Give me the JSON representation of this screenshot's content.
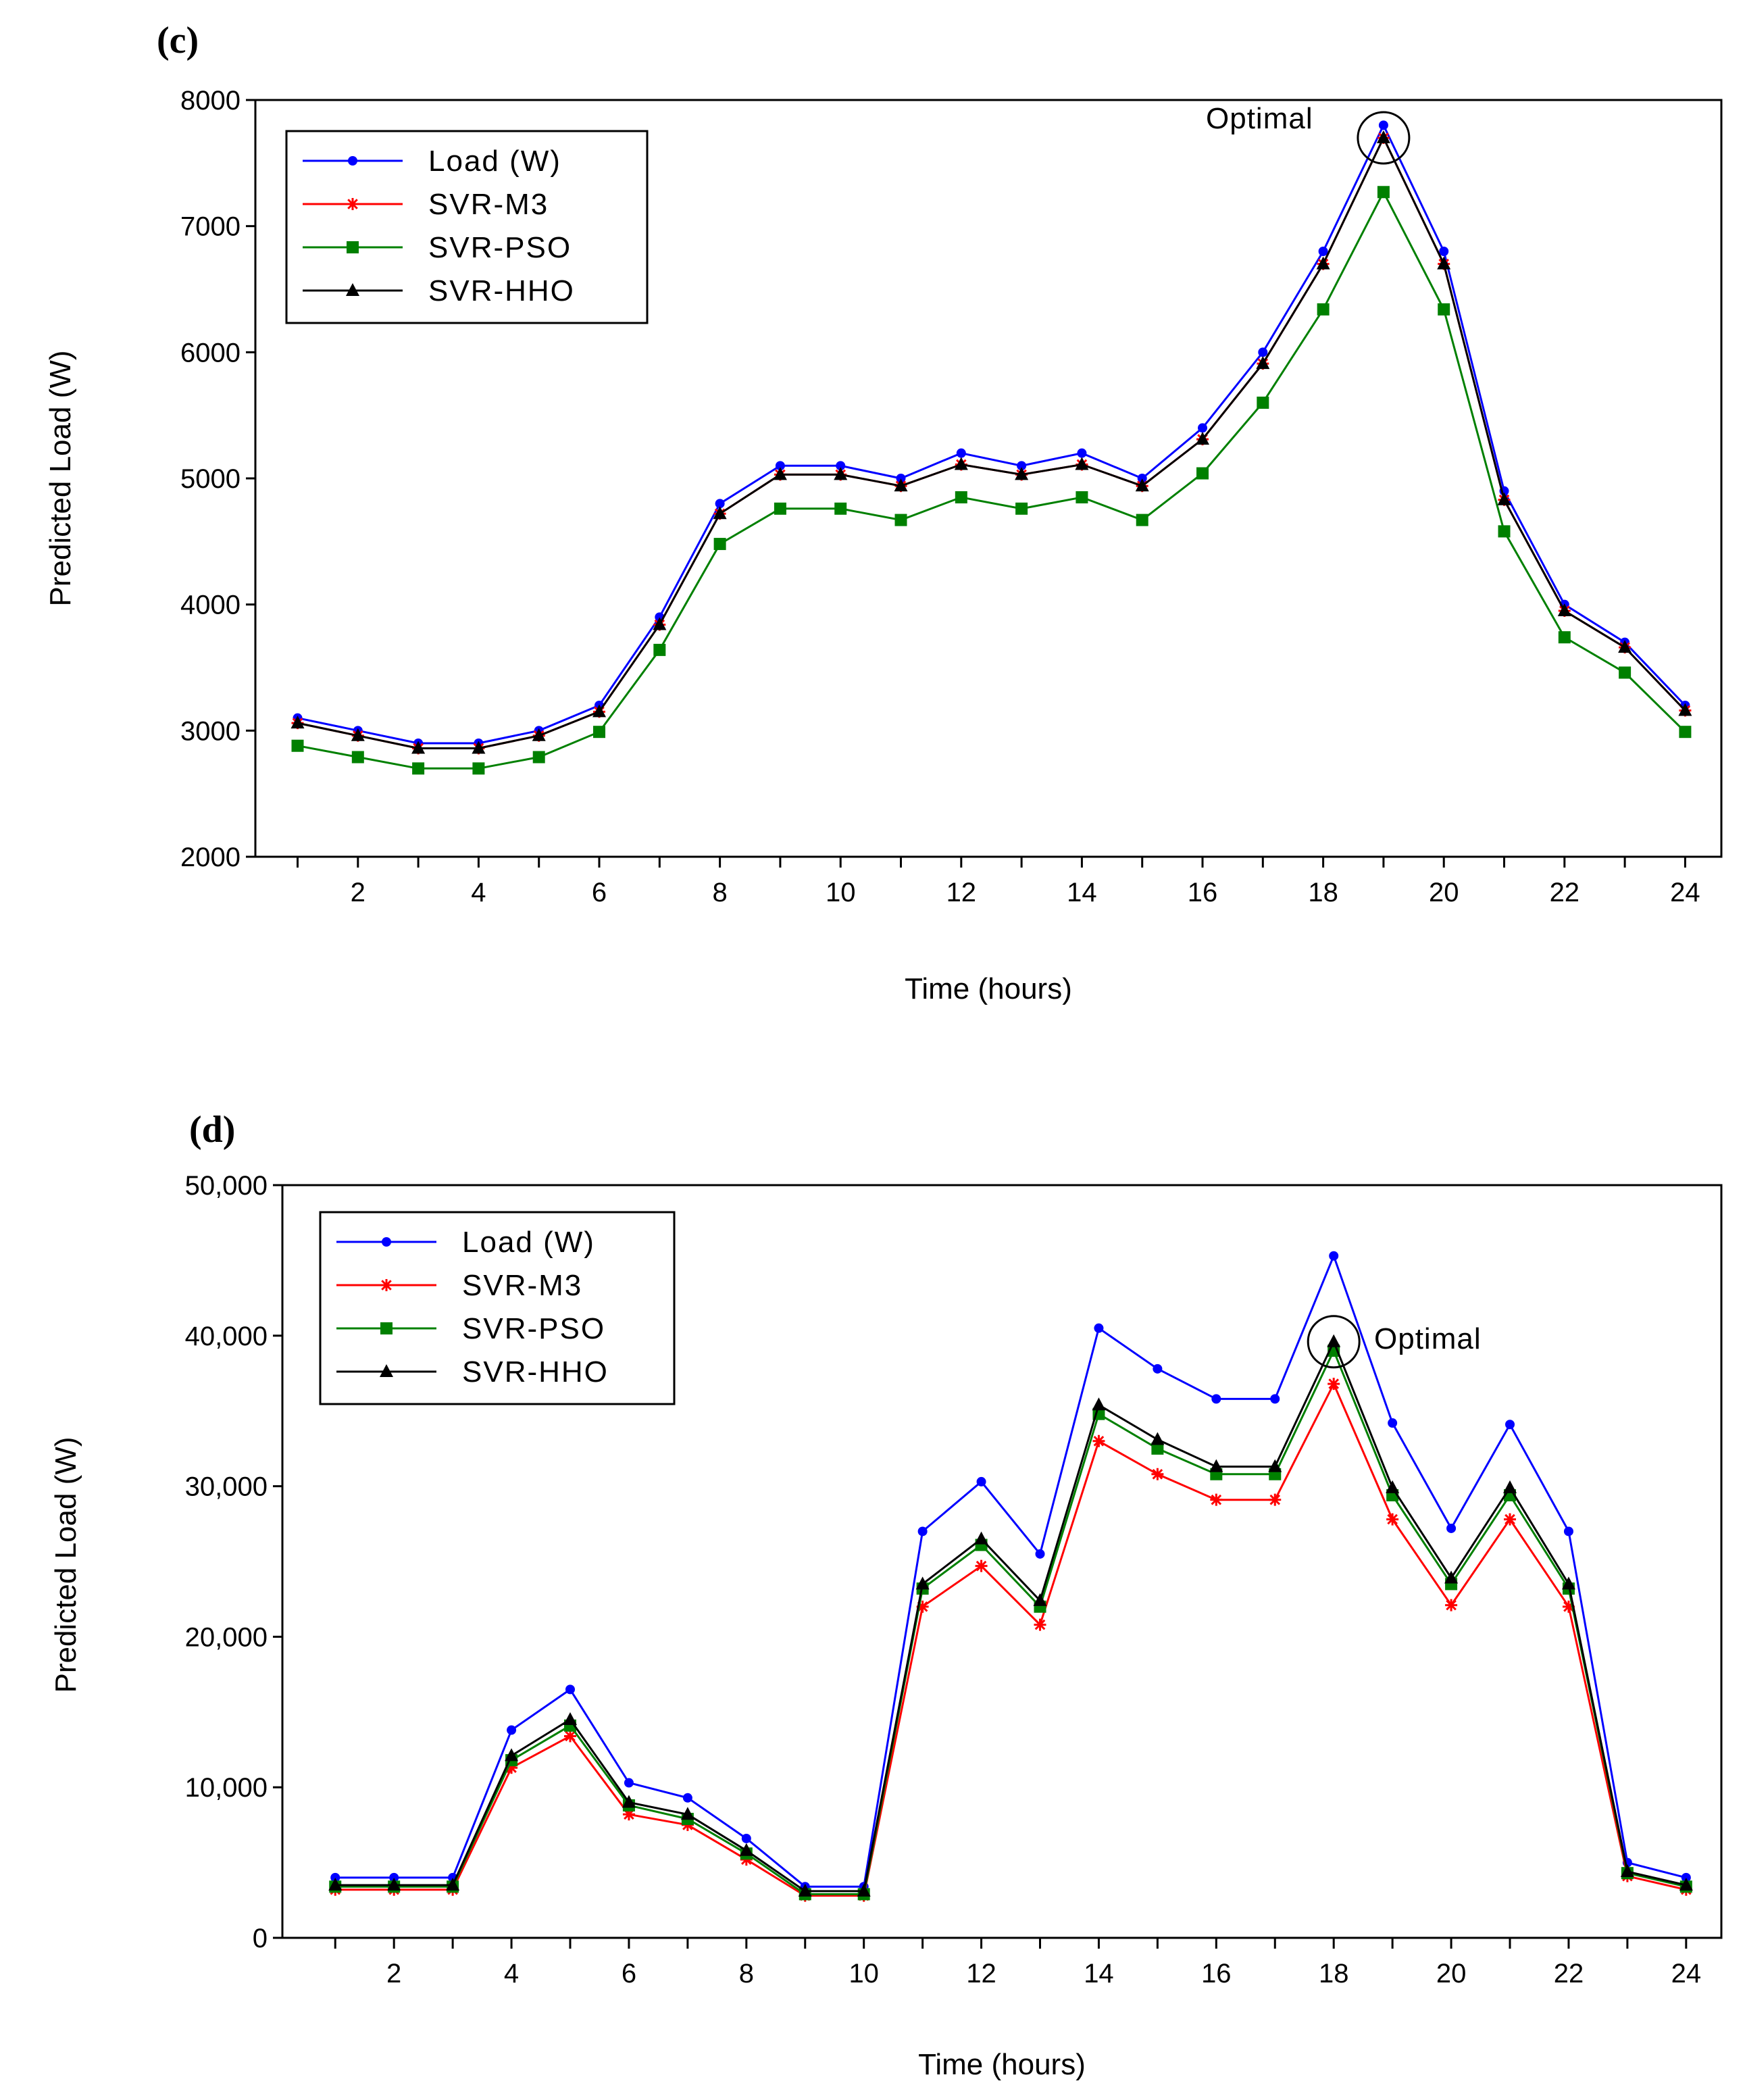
{
  "chart_data": [
    {
      "panel": "(c)",
      "type": "line",
      "title": "",
      "xlabel": "Time (hours)",
      "ylabel": "Predicted Load (W)",
      "x": [
        1,
        2,
        3,
        4,
        5,
        6,
        7,
        8,
        9,
        10,
        11,
        12,
        13,
        14,
        15,
        16,
        17,
        18,
        19,
        20,
        21,
        22,
        23,
        24
      ],
      "xlim": [
        0.3,
        24.6
      ],
      "ylim": [
        2000,
        8000
      ],
      "xticks": [
        2,
        4,
        6,
        8,
        10,
        12,
        14,
        16,
        18,
        20,
        22,
        24
      ],
      "yticks": [
        2000,
        3000,
        4000,
        5000,
        6000,
        7000,
        8000
      ],
      "ytick_labels": [
        "2000",
        "3000",
        "4000",
        "5000",
        "6000",
        "7000",
        "8000"
      ],
      "legend_position": "top-left",
      "series": [
        {
          "name": "Load (W)",
          "color": "#0000ff",
          "marker": "dot",
          "values": [
            3100,
            3000,
            2900,
            2900,
            3000,
            3200,
            3900,
            4800,
            5100,
            5100,
            5000,
            5200,
            5100,
            5200,
            5000,
            5400,
            6000,
            6800,
            7800,
            6800,
            4900,
            4000,
            3700,
            3200
          ]
        },
        {
          "name": "SVR-M3",
          "color": "#ff0000",
          "marker": "star",
          "values": [
            3060,
            2960,
            2860,
            2860,
            2960,
            3150,
            3840,
            4720,
            5030,
            5030,
            4940,
            5110,
            5030,
            5110,
            4940,
            5310,
            5910,
            6700,
            7700,
            6700,
            4830,
            3950,
            3660,
            3160
          ]
        },
        {
          "name": "SVR-PSO",
          "color": "#008000",
          "marker": "square",
          "values": [
            2880,
            2790,
            2700,
            2700,
            2790,
            2990,
            3640,
            4480,
            4760,
            4760,
            4670,
            4850,
            4760,
            4850,
            4670,
            5040,
            5600,
            6340,
            7270,
            6340,
            4580,
            3740,
            3460,
            2990
          ]
        },
        {
          "name": "SVR-HHO",
          "color": "#000000",
          "marker": "triangle",
          "values": [
            3060,
            2960,
            2860,
            2860,
            2960,
            3150,
            3840,
            4720,
            5030,
            5030,
            4940,
            5110,
            5030,
            5110,
            4940,
            5310,
            5910,
            6700,
            7700,
            6700,
            4830,
            3950,
            3660,
            3160
          ]
        }
      ],
      "annotation": {
        "text": "Optimal",
        "x": 19,
        "y": 7700
      }
    },
    {
      "panel": "(d)",
      "type": "line",
      "title": "",
      "xlabel": "Time (hours)",
      "ylabel": "Predicted Load (W)",
      "x": [
        1,
        2,
        3,
        4,
        5,
        6,
        7,
        8,
        9,
        10,
        11,
        12,
        13,
        14,
        15,
        16,
        17,
        18,
        19,
        20,
        21,
        22,
        23,
        24
      ],
      "xlim": [
        0.1,
        24.6
      ],
      "ylim": [
        0,
        50000
      ],
      "xticks": [
        2,
        4,
        6,
        8,
        10,
        12,
        14,
        16,
        18,
        20,
        22,
        24
      ],
      "yticks": [
        0,
        10000,
        20000,
        30000,
        40000,
        50000
      ],
      "ytick_labels": [
        "0",
        "10,000",
        "20,000",
        "30,000",
        "40,000",
        "50,000"
      ],
      "legend_position": "top-left",
      "series": [
        {
          "name": "Load (W)",
          "color": "#0000ff",
          "marker": "dot",
          "values": [
            4000,
            4000,
            4000,
            13800,
            16500,
            10300,
            9300,
            6600,
            3400,
            3400,
            27000,
            30300,
            25500,
            40500,
            37800,
            35800,
            35800,
            45300,
            34200,
            27200,
            34100,
            27000,
            5000,
            4000
          ]
        },
        {
          "name": "SVR-M3",
          "color": "#ff0000",
          "marker": "star",
          "values": [
            3200,
            3200,
            3200,
            11300,
            13400,
            8200,
            7500,
            5200,
            2800,
            2800,
            22000,
            24700,
            20800,
            33000,
            30800,
            29100,
            29100,
            36800,
            27800,
            22100,
            27800,
            22000,
            4100,
            3200
          ]
        },
        {
          "name": "SVR-PSO",
          "color": "#008000",
          "marker": "square",
          "values": [
            3400,
            3400,
            3400,
            11800,
            14100,
            8800,
            7900,
            5600,
            2900,
            2900,
            23200,
            26100,
            22000,
            34800,
            32500,
            30800,
            30800,
            39000,
            29400,
            23500,
            29400,
            23200,
            4300,
            3400
          ]
        },
        {
          "name": "SVR-HHO",
          "color": "#000000",
          "marker": "triangle",
          "values": [
            3500,
            3500,
            3500,
            12100,
            14500,
            9000,
            8200,
            5800,
            3100,
            3100,
            23500,
            26500,
            22400,
            35400,
            33100,
            31300,
            31300,
            39600,
            29900,
            23900,
            29900,
            23500,
            4400,
            3500
          ]
        }
      ],
      "annotation": {
        "text": "Optimal",
        "x": 18,
        "y": 39600
      }
    }
  ]
}
